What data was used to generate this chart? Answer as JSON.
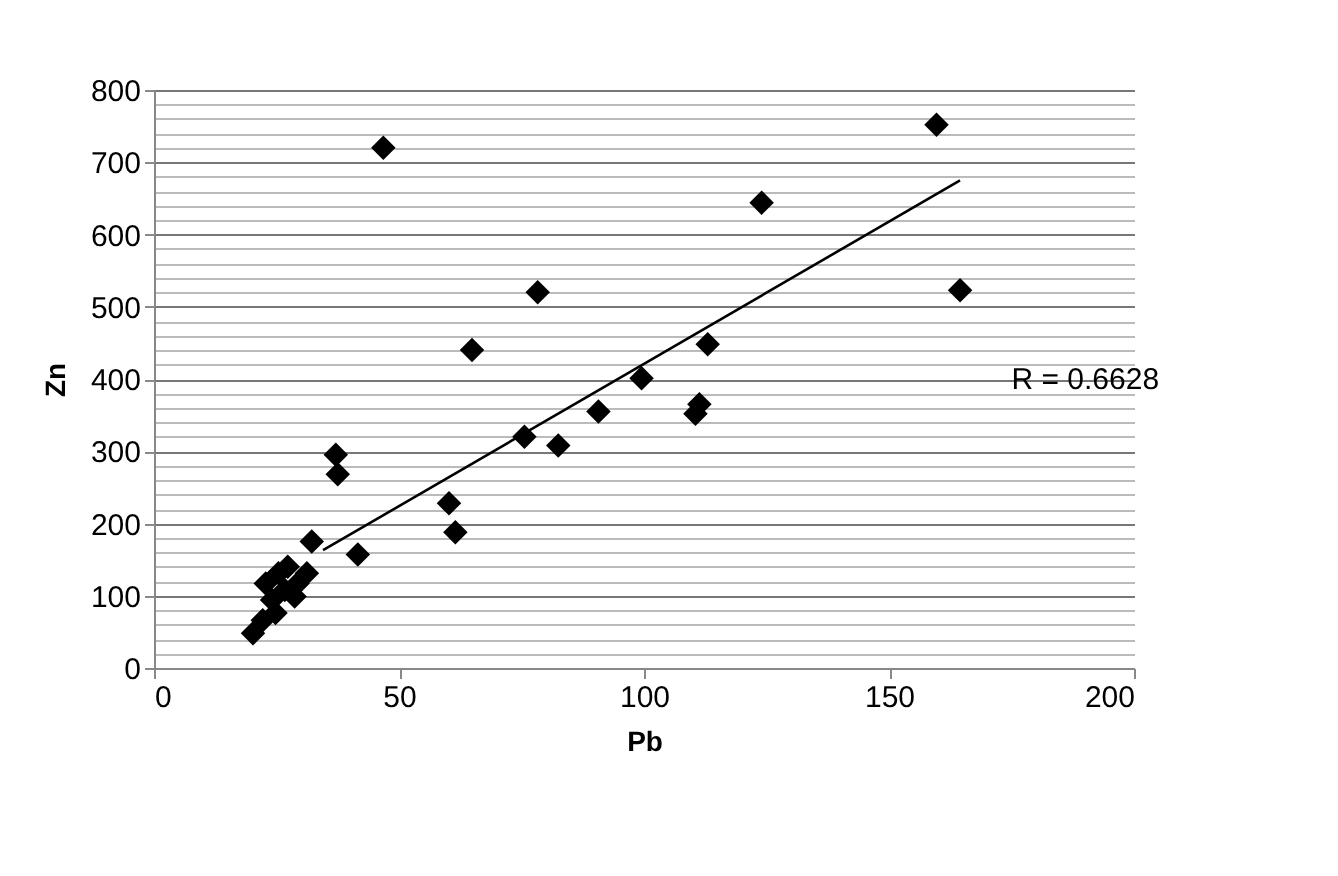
{
  "chart_data": {
    "type": "scatter",
    "xlabel": "Pb",
    "ylabel": "Zn",
    "xlim": [
      0,
      200
    ],
    "xticks": [
      0,
      50,
      100,
      150,
      200
    ],
    "ylim": [
      0,
      800
    ],
    "yticks": [
      0,
      {
        "value": 20,
        "label": null
      },
      {
        "value": 40,
        "label": null
      },
      {
        "value": 60,
        "label": null
      },
      {
        "value": 80,
        "label": null
      },
      100,
      {
        "value": 120,
        "label": null
      },
      {
        "value": 140,
        "label": null
      },
      {
        "value": 160,
        "label": null
      },
      {
        "value": 180,
        "label": null
      },
      200,
      {
        "value": 220,
        "label": null
      },
      {
        "value": 240,
        "label": null
      },
      {
        "value": 260,
        "label": null
      },
      {
        "value": 280,
        "label": null
      },
      300,
      {
        "value": 320,
        "label": null
      },
      {
        "value": 340,
        "label": null
      },
      {
        "value": 360,
        "label": null
      },
      {
        "value": 380,
        "label": null
      },
      400,
      {
        "value": 420,
        "label": null
      },
      {
        "value": 440,
        "label": null
      },
      {
        "value": 460,
        "label": null
      },
      {
        "value": 480,
        "label": null
      },
      500,
      {
        "value": 520,
        "label": null
      },
      {
        "value": 540,
        "label": null
      },
      {
        "value": 560,
        "label": null
      },
      {
        "value": 580,
        "label": null
      },
      600,
      {
        "value": 620,
        "label": null
      },
      {
        "value": 640,
        "label": null
      },
      {
        "value": 660,
        "label": null
      },
      {
        "value": 680,
        "label": null
      },
      700,
      {
        "value": 720,
        "label": null
      },
      {
        "value": 740,
        "label": null
      },
      {
        "value": 760,
        "label": null
      },
      {
        "value": 780,
        "label": null
      },
      800
    ],
    "grid": "y",
    "series": [
      {
        "marker": "diamond",
        "color": "#000000",
        "x": [
          46.8,
          78.3,
          64.9,
          37.1,
          37.5,
          41.6,
          32.2,
          60.2,
          61.5,
          75.6,
          82.5,
          90.7,
          99.5,
          110.5,
          111.3,
          159.7,
          124,
          164.5,
          113,
          20.2,
          22.2,
          24.8,
          22.8,
          25.4,
          27.3,
          29.3,
          31.2,
          26.7,
          24.1,
          28.7
        ],
        "values": [
          720,
          520,
          440,
          295,
          268,
          157,
          175,
          228,
          188,
          320,
          308,
          355,
          401,
          352,
          365,
          752,
          644,
          523,
          448,
          48,
          66,
          76,
          117,
          131,
          140,
          117,
          131,
          108,
          94,
          99
        ]
      },
      {
        "type": "line",
        "marker": "none",
        "color": "#000000",
        "x": [
          34.5,
          164.5
        ],
        "values": [
          163,
          675
        ]
      }
    ],
    "annotations": [
      "R = 0.6628"
    ]
  }
}
